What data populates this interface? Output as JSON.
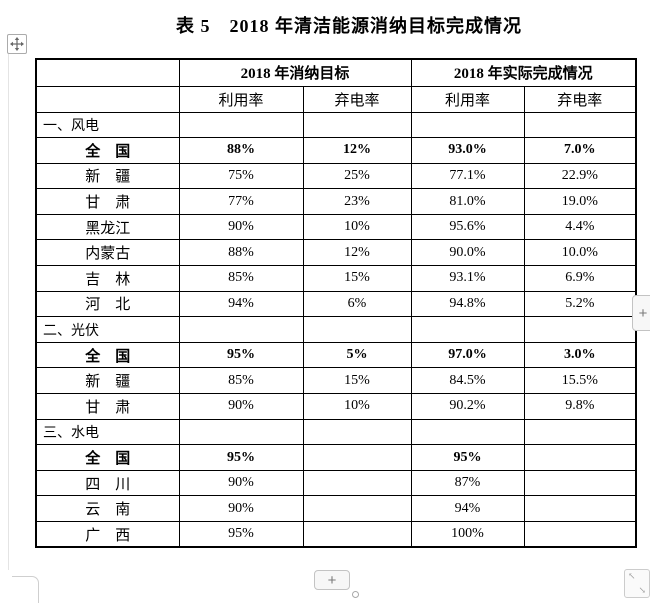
{
  "page": {
    "title": "表 5　2018 年清洁能源消纳目标完成情况"
  },
  "table": {
    "header": {
      "group_target": "2018 年消纳目标",
      "group_actual": "2018 年实际完成情况",
      "col_utilization_1": "利用率",
      "col_curtailment_1": "弃电率",
      "col_utilization_2": "利用率",
      "col_curtailment_2": "弃电率"
    },
    "rows": [
      {
        "type": "section",
        "name": "一、风电",
        "target_utilization": "",
        "target_curtailment": "",
        "actual_utilization": "",
        "actual_curtailment": ""
      },
      {
        "type": "total",
        "name": "全　国",
        "target_utilization": "88%",
        "target_curtailment": "12%",
        "actual_utilization": "93.0%",
        "actual_curtailment": "7.0%"
      },
      {
        "type": "region",
        "name": "新　疆",
        "target_utilization": "75%",
        "target_curtailment": "25%",
        "actual_utilization": "77.1%",
        "actual_curtailment": "22.9%"
      },
      {
        "type": "region",
        "name": "甘　肃",
        "target_utilization": "77%",
        "target_curtailment": "23%",
        "actual_utilization": "81.0%",
        "actual_curtailment": "19.0%"
      },
      {
        "type": "region",
        "name": "黑龙江",
        "target_utilization": "90%",
        "target_curtailment": "10%",
        "actual_utilization": "95.6%",
        "actual_curtailment": "4.4%"
      },
      {
        "type": "region",
        "name": "内蒙古",
        "target_utilization": "88%",
        "target_curtailment": "12%",
        "actual_utilization": "90.0%",
        "actual_curtailment": "10.0%"
      },
      {
        "type": "region",
        "name": "吉　林",
        "target_utilization": "85%",
        "target_curtailment": "15%",
        "actual_utilization": "93.1%",
        "actual_curtailment": "6.9%"
      },
      {
        "type": "region",
        "name": "河　北",
        "target_utilization": "94%",
        "target_curtailment": "6%",
        "actual_utilization": "94.8%",
        "actual_curtailment": "5.2%"
      },
      {
        "type": "section",
        "name": "二、光伏",
        "target_utilization": "",
        "target_curtailment": "",
        "actual_utilization": "",
        "actual_curtailment": ""
      },
      {
        "type": "total",
        "name": "全　国",
        "target_utilization": "95%",
        "target_curtailment": "5%",
        "actual_utilization": "97.0%",
        "actual_curtailment": "3.0%"
      },
      {
        "type": "region",
        "name": "新　疆",
        "target_utilization": "85%",
        "target_curtailment": "15%",
        "actual_utilization": "84.5%",
        "actual_curtailment": "15.5%"
      },
      {
        "type": "region",
        "name": "甘　肃",
        "target_utilization": "90%",
        "target_curtailment": "10%",
        "actual_utilization": "90.2%",
        "actual_curtailment": "9.8%"
      },
      {
        "type": "section",
        "name": "三、水电",
        "target_utilization": "",
        "target_curtailment": "",
        "actual_utilization": "",
        "actual_curtailment": ""
      },
      {
        "type": "total",
        "name": "全　国",
        "target_utilization": "95%",
        "target_curtailment": "",
        "actual_utilization": "95%",
        "actual_curtailment": ""
      },
      {
        "type": "region",
        "name": "四　川",
        "target_utilization": "90%",
        "target_curtailment": "",
        "actual_utilization": "87%",
        "actual_curtailment": ""
      },
      {
        "type": "region",
        "name": "云　南",
        "target_utilization": "90%",
        "target_curtailment": "",
        "actual_utilization": "94%",
        "actual_curtailment": ""
      },
      {
        "type": "region",
        "name": "广　西",
        "target_utilization": "95%",
        "target_curtailment": "",
        "actual_utilization": "100%",
        "actual_curtailment": ""
      }
    ]
  },
  "controls": {
    "move_handle_icon": "move-cross",
    "right_add_button_label": "+",
    "bottom_add_button_label": "+",
    "resize_arrow_nw": "↖",
    "resize_arrow_se": "↘"
  },
  "colors": {
    "table_border": "#000000",
    "text": "#000000",
    "chrome_background": "#f7f7f7",
    "chrome_border": "#c3c3c3",
    "page_edge": "#e4e4e4"
  }
}
